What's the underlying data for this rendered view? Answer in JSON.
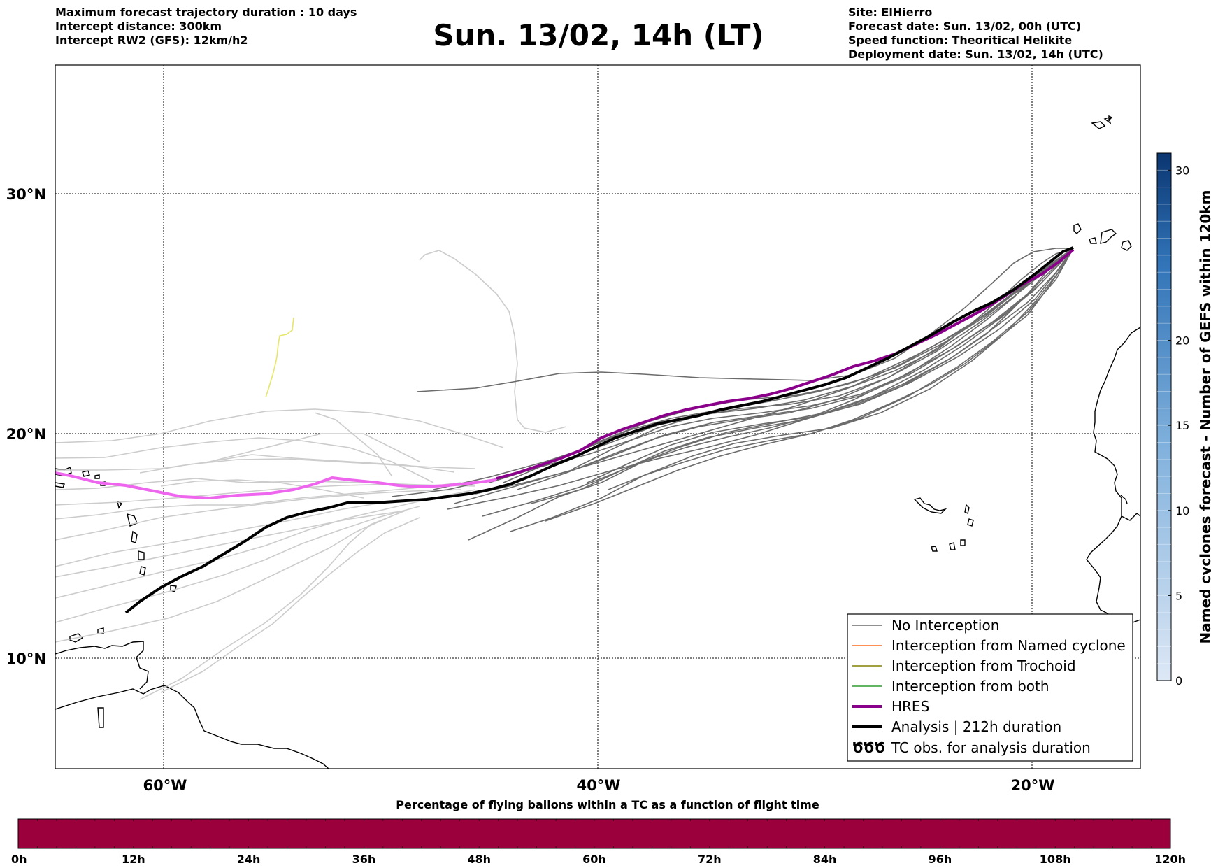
{
  "header": {
    "left_lines": [
      "Maximum forecast trajectory duration : 10 days",
      "Intercept distance: 300km",
      "Intercept RW2 (GFS):  12km/h2"
    ],
    "title": "Sun. 13/02, 14h (LT)",
    "right_lines": [
      "Site: ElHierro",
      "Forecast date: Sun. 13/02, 00h (UTC)",
      "Speed function: Theoritical Helikite",
      "Deployment date: Sun. 13/02, 14h (UTC)"
    ]
  },
  "map": {
    "extent": {
      "lon_min": -65,
      "lon_max": -15,
      "lat_min": 5,
      "lat_max": 35.3
    },
    "lat_labels": [
      {
        "lat": 30,
        "text": "30°N"
      },
      {
        "lat": 20,
        "text": "20°N"
      },
      {
        "lat": 10,
        "text": "10°N"
      }
    ],
    "lon_labels": [
      {
        "lon": -60,
        "text": "60°W"
      },
      {
        "lon": -40,
        "text": "40°W"
      },
      {
        "lon": -20,
        "text": "20°W"
      }
    ],
    "colors": {
      "no_interception": "#6b6b6b",
      "no_interception_light": "#cccccc",
      "named_cyclone": "#ff6a1a",
      "trochoid": "#808000",
      "both": "#2e9e2e",
      "hres": "#8b008b",
      "hres_extension": "#ee66ee",
      "analysis": "#000000",
      "stray_track": "#e6e66a"
    }
  },
  "legend": {
    "items": [
      {
        "label": "No Interception",
        "style": "no_interception"
      },
      {
        "label": "Interception from Named cyclone",
        "style": "named_cyclone"
      },
      {
        "label": "Interception from Trochoid",
        "style": "trochoid"
      },
      {
        "label": "Interception from both",
        "style": "both"
      },
      {
        "label": "HRES",
        "style": "hres"
      },
      {
        "label": "Analysis | 212h duration",
        "style": "analysis"
      },
      {
        "label": "TC obs. for analysis duration",
        "style": "tc_obs"
      }
    ],
    "tc_obs_glyph": "ԾԾԾ"
  },
  "colorbar_right": {
    "title": "Named cyclones forecast - Number of GEFS within 120km",
    "min": 0,
    "max": 31,
    "ticks": [
      0,
      5,
      10,
      15,
      20,
      30
    ],
    "color_low": "#dde8f5",
    "color_high": "#0a3570"
  },
  "colorbar_bottom": {
    "title": "Percentage of flying ballons within a TC as a function of flight time",
    "ticks": [
      "0h",
      "12h",
      "24h",
      "36h",
      "48h",
      "60h",
      "72h",
      "84h",
      "96h",
      "108h",
      "120h"
    ],
    "fill_color": "#9b003c"
  }
}
